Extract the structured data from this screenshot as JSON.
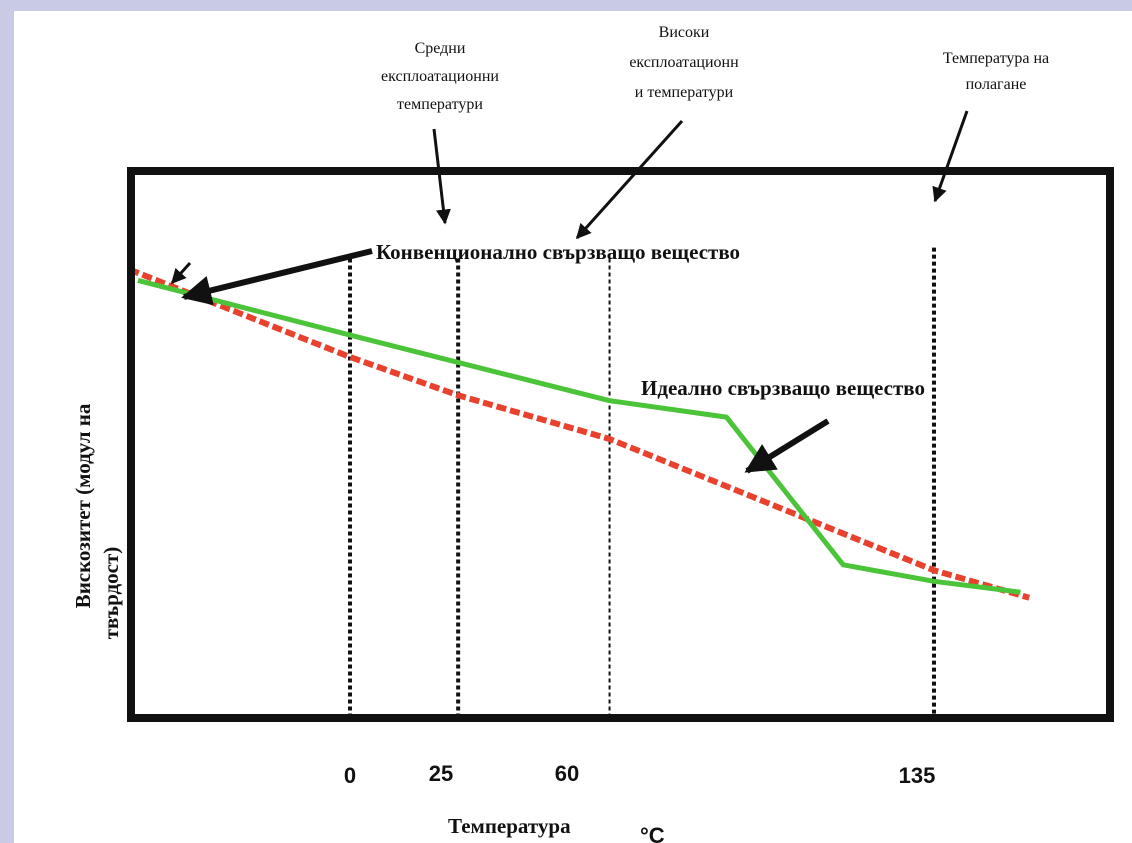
{
  "chart_data": {
    "type": "line",
    "x_ticks": [
      {
        "value": 0,
        "label": "0"
      },
      {
        "value": 25,
        "label": "25"
      },
      {
        "value": 60,
        "label": "60"
      },
      {
        "value": 135,
        "label": "135"
      }
    ],
    "xlabel": "Температура",
    "xunit": "°C",
    "ylabel_line1": "Вискозитет (модул на",
    "ylabel_line2": "твърдост)",
    "xlim": [
      -53,
      163
    ],
    "ylim": [
      0,
      100
    ],
    "series": [
      {
        "name": "Конвенционално свързващо вещество",
        "color": "#e8412e",
        "style": "dashed",
        "x": [
          -51,
          0,
          25,
          60,
          135,
          157
        ],
        "y": [
          82,
          66,
          59,
          51,
          27,
          22
        ]
      },
      {
        "name": "Идеално свързващо вещество",
        "color": "#4cc43a",
        "style": "solid",
        "x": [
          -49,
          0,
          25,
          60,
          87,
          114,
          135,
          155
        ],
        "y": [
          80,
          70,
          65,
          58,
          55,
          28,
          25,
          23
        ]
      }
    ],
    "vertical_markers": [
      0,
      25,
      60,
      135
    ],
    "annotations": [
      {
        "lines": [
          "Средни",
          "експлоатационни",
          "температури"
        ]
      },
      {
        "lines": [
          "Високи",
          "експлоатационн",
          "и температури"
        ]
      },
      {
        "lines": [
          "Температура на",
          "полагане"
        ]
      }
    ]
  }
}
